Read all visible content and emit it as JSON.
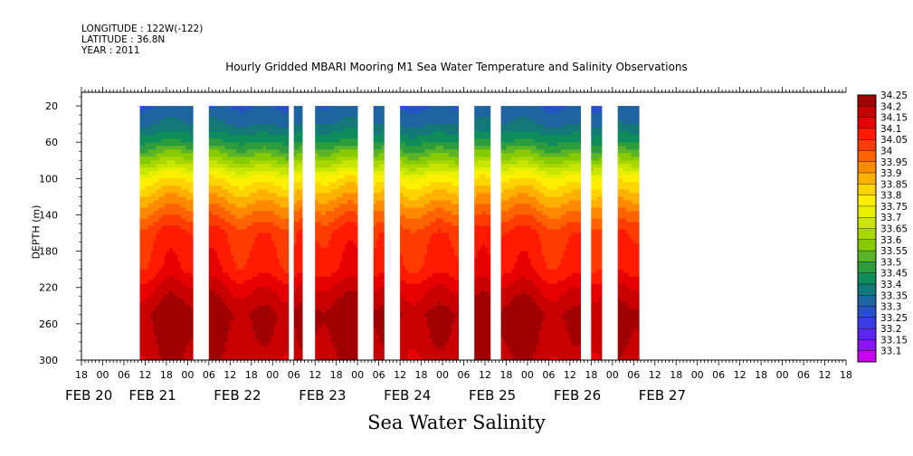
{
  "header": {
    "longitude": "LONGITUDE : 122W(-122)",
    "latitude": "LATITUDE : 36.8N",
    "year": "YEAR : 2011"
  },
  "chart_data": {
    "type": "heatmap",
    "title": "Hourly Gridded MBARI Mooring M1 Sea Water Temperature and Salinity Observations",
    "bottom_label": "Sea Water Salinity",
    "ylabel": "DEPTH (m)",
    "ylim": [
      300,
      5
    ],
    "y_ticks": [
      20,
      60,
      100,
      140,
      180,
      220,
      260,
      300
    ],
    "x_hours_per_tick": 6,
    "x_tick_labels": [
      "18",
      "00",
      "06",
      "12",
      "18",
      "00",
      "06",
      "12",
      "18",
      "00",
      "06",
      "12",
      "18",
      "00",
      "06",
      "12",
      "18",
      "00",
      "06",
      "12",
      "18",
      "00",
      "06",
      "12",
      "18",
      "00",
      "06",
      "12",
      "18",
      "00",
      "06",
      "12",
      "18",
      "00",
      "06",
      "12",
      "18"
    ],
    "date_labels": [
      {
        "label": "FEB 20",
        "tick": 0
      },
      {
        "label": "FEB 21",
        "tick": 3
      },
      {
        "label": "FEB 22",
        "tick": 7
      },
      {
        "label": "FEB 23",
        "tick": 11
      },
      {
        "label": "FEB 24",
        "tick": 15
      },
      {
        "label": "FEB 25",
        "tick": 19
      },
      {
        "label": "FEB 26",
        "tick": 23
      },
      {
        "label": "FEB 27",
        "tick": 27
      }
    ],
    "colorbar": {
      "levels": [
        "34.25",
        "34.2",
        "34.15",
        "34.1",
        "34.05",
        "34",
        "33.95",
        "33.9",
        "33.85",
        "33.8",
        "33.75",
        "33.7",
        "33.65",
        "33.6",
        "33.55",
        "33.5",
        "33.45",
        "33.4",
        "33.35",
        "33.3",
        "33.25",
        "33.2",
        "33.15",
        "33.1"
      ],
      "colors": [
        "#a00000",
        "#c80000",
        "#e60000",
        "#ff1a00",
        "#ff3c00",
        "#ff6200",
        "#ff8a00",
        "#ffb000",
        "#ffd400",
        "#fff000",
        "#e6f000",
        "#c8e600",
        "#a8d800",
        "#86ca00",
        "#5ab428",
        "#2c9c3c",
        "#0e8c5a",
        "#147878",
        "#1e64a0",
        "#2850c8",
        "#3c3ce6",
        "#5a28f0",
        "#8c14f0",
        "#c800f0"
      ]
    },
    "data_segments": [
      {
        "start_tick": 2.75,
        "end_tick": 5.25
      },
      {
        "start_tick": 6.0,
        "end_tick": 9.75
      },
      {
        "start_tick": 10.0,
        "end_tick": 10.4
      },
      {
        "start_tick": 11.0,
        "end_tick": 13.0
      },
      {
        "start_tick": 13.75,
        "end_tick": 14.25
      },
      {
        "start_tick": 15.0,
        "end_tick": 17.75
      },
      {
        "start_tick": 18.5,
        "end_tick": 19.25
      },
      {
        "start_tick": 19.75,
        "end_tick": 23.5
      },
      {
        "start_tick": 24.0,
        "end_tick": 24.5
      },
      {
        "start_tick": 25.25,
        "end_tick": 26.25
      }
    ],
    "salinity_profile": [
      {
        "depth": 20,
        "value": 33.3
      },
      {
        "depth": 40,
        "value": 33.35
      },
      {
        "depth": 60,
        "value": 33.45
      },
      {
        "depth": 80,
        "value": 33.6
      },
      {
        "depth": 100,
        "value": 33.78
      },
      {
        "depth": 120,
        "value": 33.88
      },
      {
        "depth": 140,
        "value": 33.97
      },
      {
        "depth": 160,
        "value": 34.05
      },
      {
        "depth": 200,
        "value": 34.08
      },
      {
        "depth": 220,
        "value": 34.15
      },
      {
        "depth": 250,
        "value": 34.22
      },
      {
        "depth": 280,
        "value": 34.2
      },
      {
        "depth": 300,
        "value": 34.18
      }
    ]
  }
}
